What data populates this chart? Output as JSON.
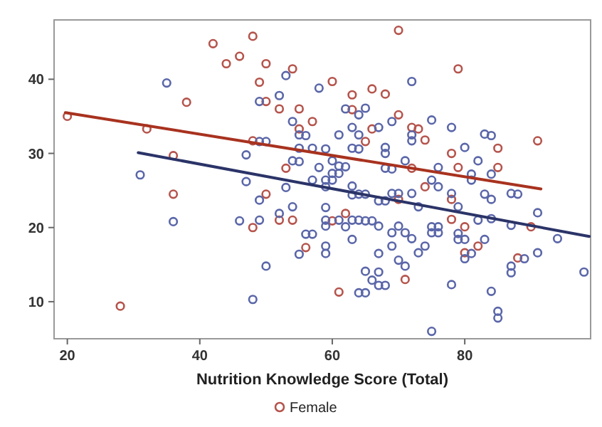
{
  "chart_data": {
    "type": "scatter",
    "xlabel": "Nutrition Knowledge Score (Total)",
    "xlim": [
      18,
      99
    ],
    "ylim": [
      5,
      48
    ],
    "xticks": [
      20,
      40,
      60,
      80
    ],
    "yticks": [
      10,
      20,
      30,
      40
    ],
    "grid": false,
    "legend": "bottom",
    "series": [
      {
        "name": "Female",
        "color": "#b5544c",
        "marker": "circle",
        "x": [
          20,
          32,
          38,
          36,
          42,
          44,
          46,
          48,
          50,
          49,
          50,
          52,
          48,
          54,
          55,
          57,
          55,
          53,
          50,
          36,
          70,
          79,
          60,
          63,
          66,
          68,
          63,
          70,
          66,
          65,
          72,
          73,
          74,
          78,
          85,
          91,
          79,
          85,
          72,
          74,
          78,
          70,
          48,
          52,
          54,
          56,
          28,
          62,
          60,
          61,
          71,
          78,
          80,
          80,
          82,
          88,
          90
        ],
        "values": [
          35,
          33.3,
          36.9,
          29.7,
          44.8,
          42.1,
          43.1,
          45.8,
          42.1,
          39.6,
          37,
          36,
          31.7,
          41.4,
          36,
          34.3,
          33.3,
          28,
          24.5,
          24.5,
          46.6,
          41.4,
          39.7,
          37.9,
          38.7,
          38,
          35.9,
          35.2,
          33.3,
          31.6,
          33.5,
          33.3,
          31.8,
          30,
          30.7,
          31.7,
          28.1,
          28.1,
          28,
          25.5,
          23.8,
          23.8,
          20,
          21,
          21,
          17.3,
          9.4,
          21.9,
          20.9,
          11.3,
          13,
          21.1,
          20.1,
          16.6,
          17.5,
          15.9,
          20.1
        ]
      },
      {
        "color": "#5a66a8",
        "marker": "circle",
        "x": [
          35,
          31,
          49,
          52,
          53,
          58,
          54,
          55,
          56,
          55,
          57,
          47,
          49,
          50,
          54,
          55,
          58,
          57,
          53,
          47,
          49,
          72,
          62,
          65,
          64,
          69,
          75,
          78,
          83,
          84,
          63,
          67,
          64,
          61,
          72,
          72,
          80,
          63,
          64,
          68,
          68,
          59,
          82,
          71,
          76,
          84,
          81,
          81,
          68,
          69,
          60,
          61,
          62,
          61,
          60,
          75,
          76,
          59,
          60,
          83,
          84,
          87,
          88,
          59,
          63,
          78,
          72,
          69,
          70,
          64,
          65,
          63,
          79,
          91,
          67,
          68,
          73,
          36,
          49,
          46,
          52,
          54,
          56,
          57,
          55,
          50,
          48,
          59,
          59,
          59,
          59,
          59,
          61,
          62,
          63,
          64,
          65,
          66,
          63,
          67,
          67,
          65,
          66,
          67,
          67,
          68,
          64,
          65,
          69,
          70,
          71,
          69,
          70,
          71,
          72,
          73,
          74,
          75,
          76,
          75,
          76,
          79,
          79,
          80,
          80,
          81,
          83,
          78,
          75,
          84,
          85,
          85,
          87,
          87,
          89,
          91,
          94,
          98,
          84,
          82,
          87
        ],
        "values": [
          39.5,
          27.1,
          37,
          37.8,
          40.5,
          38.8,
          34.3,
          32.5,
          32.4,
          30.7,
          30.7,
          29.8,
          31.6,
          31.6,
          29,
          28.9,
          28.1,
          26.4,
          25.4,
          26.2,
          23.7,
          39.7,
          36,
          36.1,
          35.2,
          34.3,
          34.5,
          33.5,
          32.6,
          32.4,
          33.5,
          33.5,
          32.5,
          32.5,
          32.5,
          31.7,
          30.8,
          30.7,
          30.6,
          30.8,
          30,
          30.6,
          29,
          29,
          28.1,
          27.2,
          27.2,
          26.4,
          28,
          27.9,
          29,
          28.3,
          28.2,
          27.3,
          27.3,
          26.4,
          25.5,
          26.4,
          26.4,
          24.5,
          23.8,
          24.6,
          24.5,
          25.5,
          25.6,
          24.6,
          24.6,
          24.6,
          24.6,
          24.5,
          24.5,
          24.4,
          22.8,
          22,
          23.6,
          23.6,
          22.8,
          20.8,
          21,
          20.9,
          21.9,
          22.8,
          19.1,
          19.1,
          16.4,
          14.8,
          10.3,
          22.7,
          21,
          20.2,
          17.5,
          16.5,
          21,
          20.1,
          21,
          21,
          20.9,
          20.9,
          18.4,
          20.2,
          16.5,
          14.1,
          12.9,
          14,
          12.2,
          12.2,
          11.2,
          11.2,
          17.5,
          20.2,
          19.3,
          19.3,
          15.6,
          14.8,
          18.5,
          16.6,
          17.5,
          20.1,
          20.1,
          19.3,
          19.3,
          19.2,
          18.4,
          18.4,
          15.8,
          16.5,
          18.4,
          12.3,
          6,
          11.4,
          8.7,
          7.8,
          14.8,
          13.9,
          15.8,
          16.6,
          18.5,
          14,
          21.2,
          21,
          20.3
        ]
      },
      {
        "type": "line",
        "color": "#a8321f",
        "x": [
          19.7,
          91.5
        ],
        "values": [
          35.5,
          25.2
        ]
      },
      {
        "type": "line",
        "color": "#2b3468",
        "x": [
          30.7,
          98.8
        ],
        "values": [
          30.1,
          18.8
        ]
      }
    ]
  }
}
